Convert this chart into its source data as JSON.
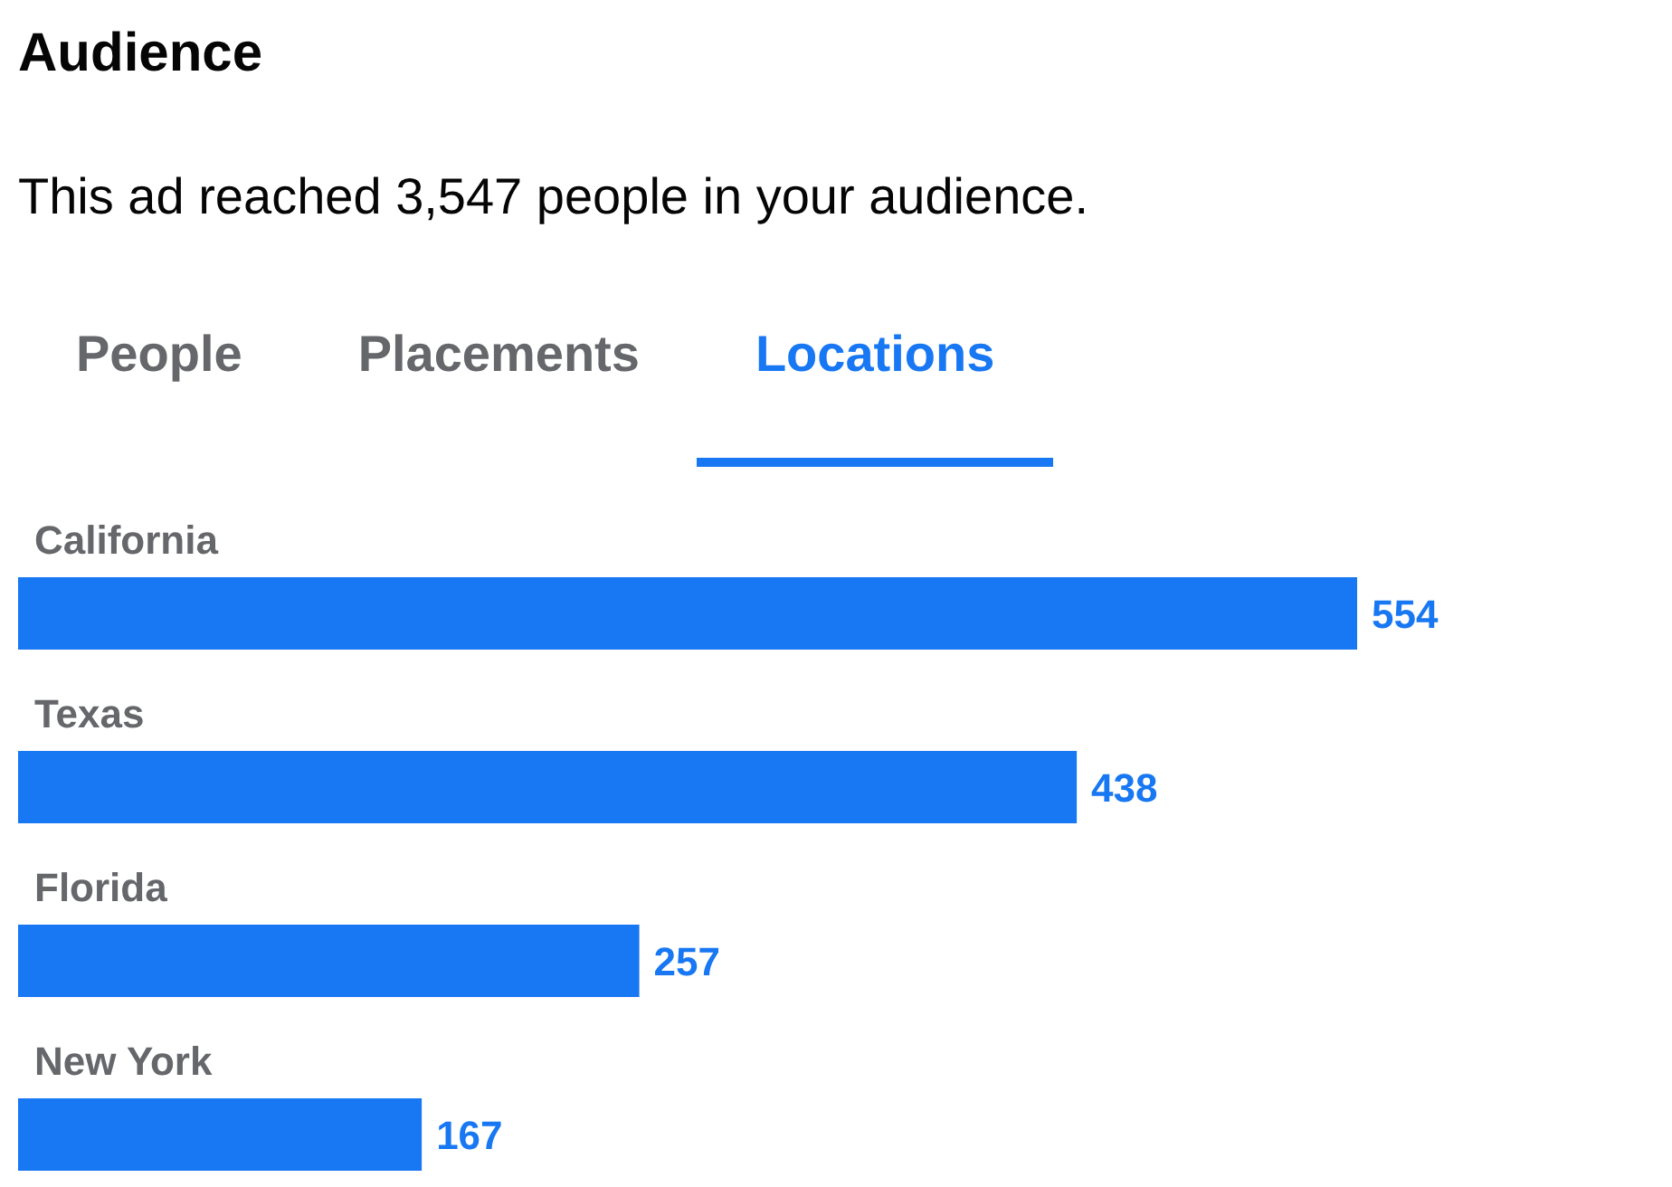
{
  "chart_data": {
    "type": "bar",
    "orientation": "horizontal",
    "title": "Audience",
    "subtitle": "This ad reached 3,547 people in your audience.",
    "annotations": [
      "People",
      "Placements",
      "Locations"
    ],
    "categories": [
      "California",
      "Texas",
      "Florida",
      "New York"
    ],
    "values": [
      554,
      438,
      257,
      167
    ],
    "color": "#1877f2",
    "data_labels": true,
    "grid": false,
    "legend": false
  }
}
